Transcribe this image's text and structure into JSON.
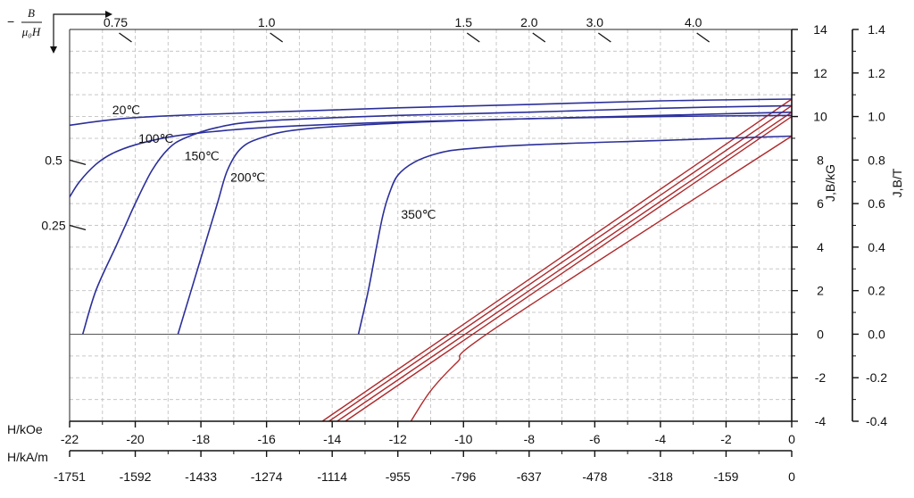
{
  "chart_data": {
    "type": "line",
    "y_label": "J,B/kG",
    "y2_label": "J,B/T",
    "x_label": "H/kOe",
    "x2_label": "H/kA/m",
    "x_range": [
      -22,
      0
    ],
    "y_range": [
      -4,
      14
    ],
    "y2_range": [
      -0.4,
      1.4
    ],
    "grid": true,
    "x_ticks": [
      "-22",
      "-20",
      "-18",
      "-16",
      "-14",
      "-12",
      "-10",
      "-8",
      "-6",
      "-4",
      "-2",
      "0"
    ],
    "x2_ticks": [
      "-1751",
      "-1592",
      "-1433",
      "-1274",
      "-1114",
      "-955",
      "-796",
      "-637",
      "-478",
      "-318",
      "-159",
      "0"
    ],
    "y_ticks": [
      "-4",
      "-2",
      "0",
      "2",
      "4",
      "6",
      "8",
      "10",
      "12",
      "14"
    ],
    "y2_ticks": [
      "-0.4",
      "-0.2",
      "0.0",
      "0.2",
      "0.4",
      "0.6",
      "0.8",
      "1.0",
      "1.2",
      "1.4"
    ],
    "permeance": {
      "symbol_numerator": "B",
      "symbol_denominator": "μ₀H",
      "prefix": "−",
      "top": [
        {
          "label": "0.75",
          "x": -20.6
        },
        {
          "label": "1.0",
          "x": -16.0
        },
        {
          "label": "1.5",
          "x": -10.0
        },
        {
          "label": "2.0",
          "x": -8.0
        },
        {
          "label": "3.0",
          "x": -6.0
        },
        {
          "label": "4.0",
          "x": -3.0
        }
      ],
      "left": [
        {
          "label": "0.5",
          "y": 8.0
        },
        {
          "label": "0.25",
          "y": 5.0
        }
      ]
    },
    "series": [
      {
        "name": "20℃",
        "color": "#2b2f9a",
        "j_curve": [
          [
            -22,
            9.6
          ],
          [
            -20,
            9.95
          ],
          [
            -16,
            10.2
          ],
          [
            -12,
            10.4
          ],
          [
            -8,
            10.55
          ],
          [
            -4,
            10.72
          ],
          [
            0,
            10.8
          ]
        ],
        "b_curve": [
          [
            -14.3,
            -4
          ],
          [
            0,
            10.8
          ]
        ]
      },
      {
        "name": "100℃",
        "color": "#2b2f9a",
        "j_curve": [
          [
            -21.6,
            0
          ],
          [
            -21.2,
            2
          ],
          [
            -20.6,
            4
          ],
          [
            -20.3,
            5
          ],
          [
            -20.0,
            6
          ],
          [
            -19.5,
            7.5
          ],
          [
            -19.0,
            8.5
          ],
          [
            -18.5,
            9.0
          ],
          [
            -17.5,
            9.5
          ],
          [
            -16,
            9.8
          ],
          [
            -12,
            10.05
          ],
          [
            -8,
            10.2
          ],
          [
            -4,
            10.38
          ],
          [
            0,
            10.5
          ]
        ],
        "b_curve": [
          [
            -14.1,
            -4
          ],
          [
            0,
            10.5
          ]
        ]
      },
      {
        "name": "150℃",
        "color": "#2b2f9a",
        "j_curve": [
          [
            -18.7,
            0
          ],
          [
            -18.3,
            2
          ],
          [
            -17.9,
            4
          ],
          [
            -17.5,
            6
          ],
          [
            -17.2,
            7.5
          ],
          [
            -16.8,
            8.5
          ],
          [
            -16.2,
            9.0
          ],
          [
            -15.0,
            9.4
          ],
          [
            -12,
            9.7
          ],
          [
            -8,
            9.9
          ],
          [
            -4,
            10.05
          ],
          [
            0,
            10.2
          ]
        ],
        "b_curve": [
          [
            -13.85,
            -4
          ],
          [
            0,
            10.2
          ]
        ]
      },
      {
        "name": "200℃",
        "color": "#2b2f9a",
        "j_curve": [
          [
            -22,
            6.3
          ],
          [
            -21.7,
            7.0
          ],
          [
            -21.2,
            7.8
          ],
          [
            -20.7,
            8.3
          ],
          [
            -20,
            8.7
          ],
          [
            -19,
            9.05
          ],
          [
            -18,
            9.25
          ],
          [
            -16,
            9.5
          ],
          [
            -12,
            9.75
          ],
          [
            -8,
            9.9
          ],
          [
            -4,
            10.0
          ],
          [
            0,
            10.05
          ]
        ],
        "b_curve": [
          [
            -13.6,
            -4
          ],
          [
            0,
            10.0
          ]
        ]
      },
      {
        "name": "350℃",
        "color": "#2b2f9a",
        "j_curve": [
          [
            -13.2,
            0
          ],
          [
            -12.9,
            2
          ],
          [
            -12.65,
            4
          ],
          [
            -12.45,
            5.5
          ],
          [
            -12.25,
            6.5
          ],
          [
            -12.0,
            7.3
          ],
          [
            -11.5,
            7.9
          ],
          [
            -10.8,
            8.3
          ],
          [
            -10.0,
            8.5
          ],
          [
            -8,
            8.7
          ],
          [
            -4,
            8.9
          ],
          [
            0,
            9.1
          ]
        ],
        "b_curve": [
          [
            -11.6,
            -4
          ],
          [
            -11.0,
            -2.6
          ],
          [
            -10.2,
            -1.3
          ],
          [
            -9.0,
            0.3
          ],
          [
            0,
            9.1
          ]
        ]
      }
    ],
    "curve_labels": [
      {
        "text": "20℃",
        "x": -20.7,
        "y": 10.1
      },
      {
        "text": "100℃",
        "x": -19.9,
        "y": 8.8
      },
      {
        "text": "150℃",
        "x": -18.5,
        "y": 8.0
      },
      {
        "text": "200℃",
        "x": -17.1,
        "y": 7.0
      },
      {
        "text": "350℃",
        "x": -11.9,
        "y": 5.3
      }
    ]
  }
}
